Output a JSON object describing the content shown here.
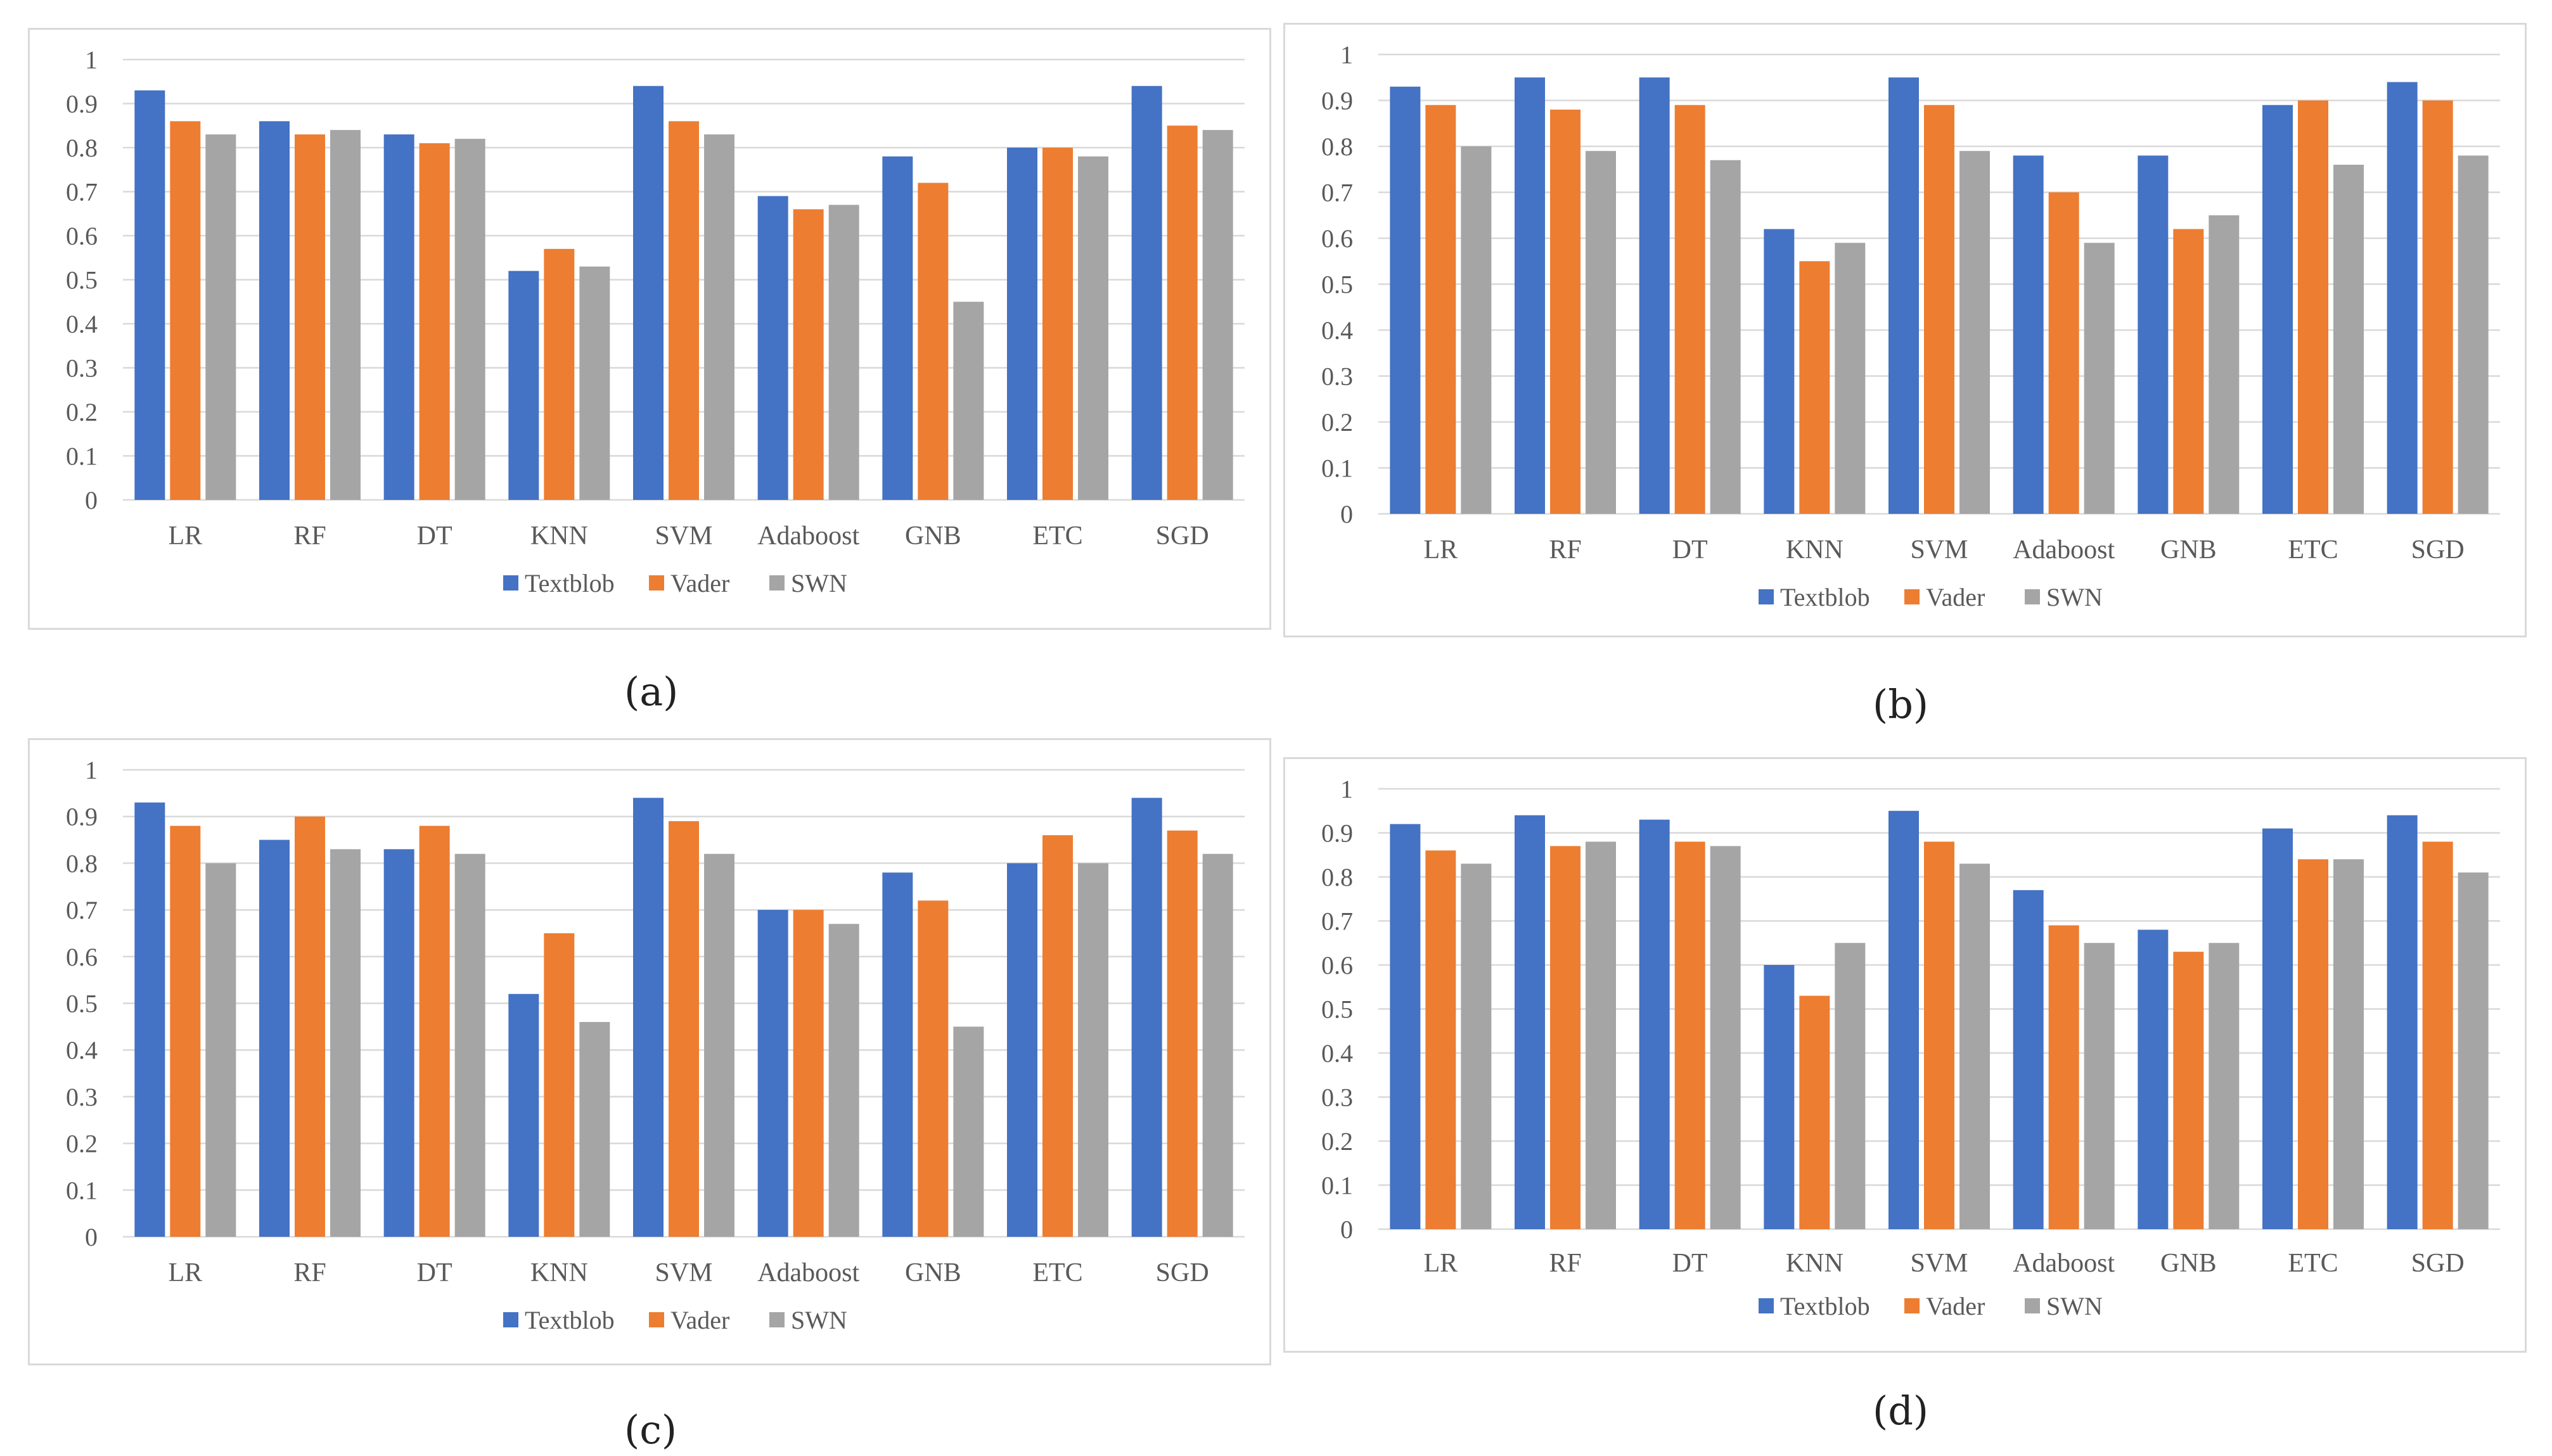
{
  "colors": {
    "Textblob": "#4472c4",
    "Vader": "#ed7d31",
    "SWN": "#a5a5a5",
    "grid": "#d9d9d9",
    "border": "#d9d9d9",
    "text": "#595959"
  },
  "chart_data": [
    {
      "panel": "(a)",
      "type": "bar",
      "categories": [
        "LR",
        "RF",
        "DT",
        "KNN",
        "SVM",
        "Adaboost",
        "GNB",
        "ETC",
        "SGD"
      ],
      "series": [
        {
          "name": "Textblob",
          "values": [
            0.93,
            0.86,
            0.83,
            0.52,
            0.94,
            0.69,
            0.78,
            0.8,
            0.94
          ]
        },
        {
          "name": "Vader",
          "values": [
            0.86,
            0.83,
            0.81,
            0.57,
            0.86,
            0.66,
            0.72,
            0.8,
            0.85
          ]
        },
        {
          "name": "SWN",
          "values": [
            0.83,
            0.84,
            0.82,
            0.53,
            0.83,
            0.67,
            0.45,
            0.78,
            0.84
          ]
        }
      ],
      "yticks": [
        "0",
        "0.1",
        "0.2",
        "0.3",
        "0.4",
        "0.5",
        "0.6",
        "0.7",
        "0.8",
        "0.9",
        "1"
      ],
      "ylim": [
        0,
        1
      ],
      "grid": true,
      "legend": "bottom-center"
    },
    {
      "panel": "(b)",
      "type": "bar",
      "categories": [
        "LR",
        "RF",
        "DT",
        "KNN",
        "SVM",
        "Adaboost",
        "GNB",
        "ETC",
        "SGD"
      ],
      "series": [
        {
          "name": "Textblob",
          "values": [
            0.93,
            0.95,
            0.95,
            0.62,
            0.95,
            0.78,
            0.78,
            0.89,
            0.94
          ]
        },
        {
          "name": "Vader",
          "values": [
            0.89,
            0.88,
            0.89,
            0.55,
            0.89,
            0.7,
            0.62,
            0.9,
            0.9
          ]
        },
        {
          "name": "SWN",
          "values": [
            0.8,
            0.79,
            0.77,
            0.59,
            0.79,
            0.59,
            0.65,
            0.76,
            0.78
          ]
        }
      ],
      "yticks": [
        "0",
        "0.1",
        "0.2",
        "0.3",
        "0.4",
        "0.5",
        "0.6",
        "0.7",
        "0.8",
        "0.9",
        "1"
      ],
      "ylim": [
        0,
        1
      ],
      "grid": true,
      "legend": "bottom-center"
    },
    {
      "panel": "(c)",
      "type": "bar",
      "categories": [
        "LR",
        "RF",
        "DT",
        "KNN",
        "SVM",
        "Adaboost",
        "GNB",
        "ETC",
        "SGD"
      ],
      "series": [
        {
          "name": "Textblob",
          "values": [
            0.93,
            0.85,
            0.83,
            0.52,
            0.94,
            0.7,
            0.78,
            0.8,
            0.94
          ]
        },
        {
          "name": "Vader",
          "values": [
            0.88,
            0.9,
            0.88,
            0.65,
            0.89,
            0.7,
            0.72,
            0.86,
            0.87
          ]
        },
        {
          "name": "SWN",
          "values": [
            0.8,
            0.83,
            0.82,
            0.46,
            0.82,
            0.67,
            0.45,
            0.8,
            0.82
          ]
        }
      ],
      "yticks": [
        "0",
        "0.1",
        "0.2",
        "0.3",
        "0.4",
        "0.5",
        "0.6",
        "0.7",
        "0.8",
        "0.9",
        "1"
      ],
      "ylim": [
        0,
        1
      ],
      "grid": true,
      "legend": "bottom-center"
    },
    {
      "panel": "(d)",
      "type": "bar",
      "categories": [
        "LR",
        "RF",
        "DT",
        "KNN",
        "SVM",
        "Adaboost",
        "GNB",
        "ETC",
        "SGD"
      ],
      "series": [
        {
          "name": "Textblob",
          "values": [
            0.92,
            0.94,
            0.93,
            0.6,
            0.95,
            0.77,
            0.68,
            0.91,
            0.94
          ]
        },
        {
          "name": "Vader",
          "values": [
            0.86,
            0.87,
            0.88,
            0.53,
            0.88,
            0.69,
            0.63,
            0.84,
            0.88
          ]
        },
        {
          "name": "SWN",
          "values": [
            0.83,
            0.88,
            0.87,
            0.65,
            0.83,
            0.65,
            0.65,
            0.84,
            0.81
          ]
        }
      ],
      "yticks": [
        "0",
        "0.1",
        "0.2",
        "0.3",
        "0.4",
        "0.5",
        "0.6",
        "0.7",
        "0.8",
        "0.9",
        "1"
      ],
      "ylim": [
        0,
        1
      ],
      "grid": true,
      "legend": "bottom-center"
    }
  ]
}
